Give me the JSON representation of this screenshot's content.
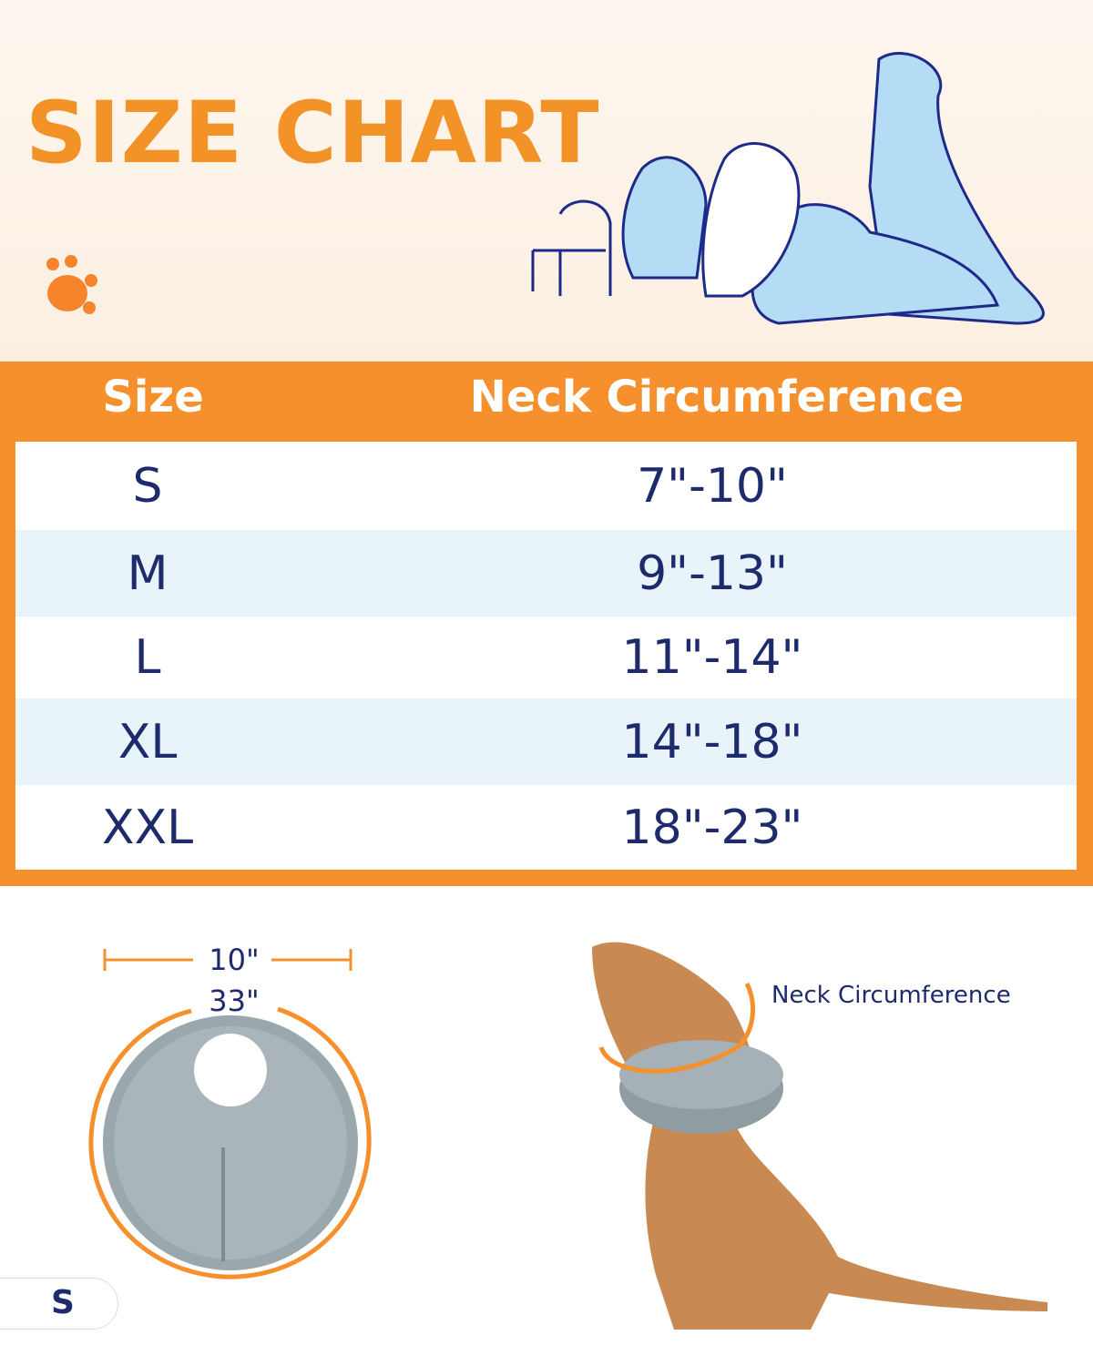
{
  "title": "SIZE CHART",
  "table": {
    "headers": [
      "Size",
      "Neck Circumference"
    ],
    "rows": [
      {
        "size": "S",
        "neck": "7\"-10\""
      },
      {
        "size": "M",
        "neck": "9\"-13\""
      },
      {
        "size": "L",
        "neck": "11\"-14\""
      },
      {
        "size": "XL",
        "neck": "14\"-18\""
      },
      {
        "size": "XXL",
        "neck": "18\"-23\""
      }
    ]
  },
  "diagram": {
    "inner_width": "10\"",
    "outer_circumference": "33\"",
    "neck_label": "Neck Circumference",
    "size_badge": "S"
  },
  "colors": {
    "accent": "#f5902c",
    "text": "#1d2a6b",
    "row_alt": "#e8f3fa"
  }
}
